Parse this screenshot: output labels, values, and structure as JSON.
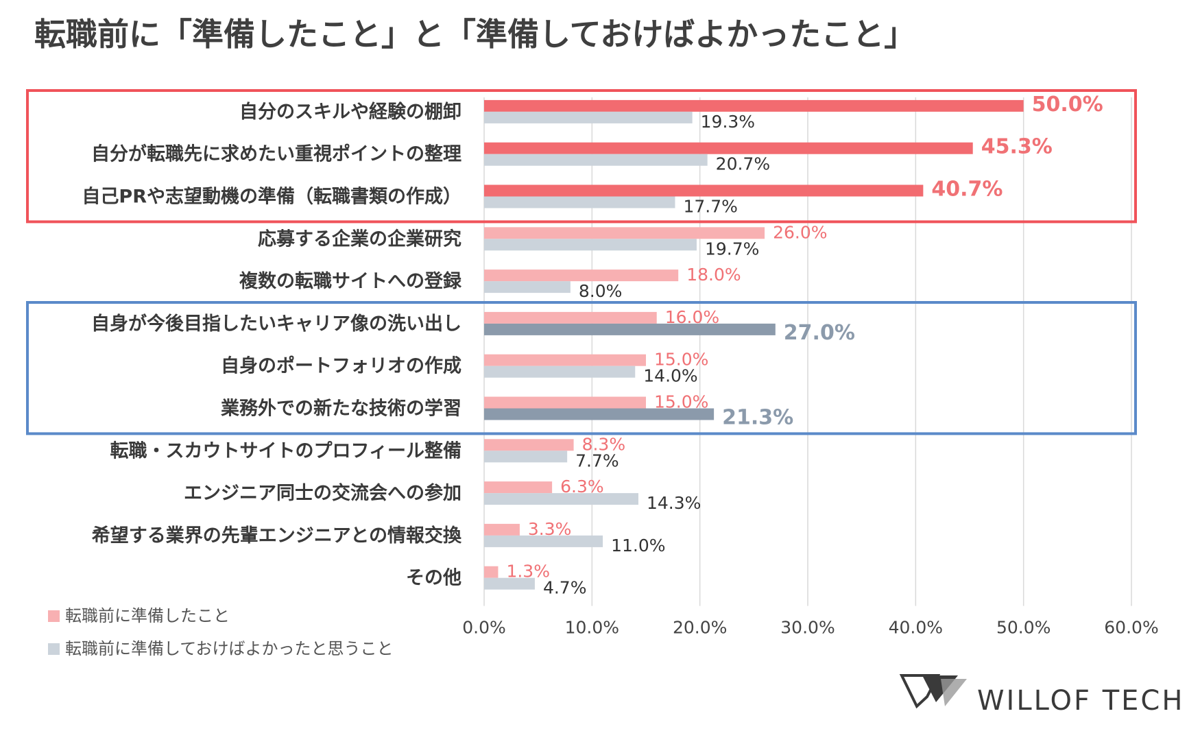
{
  "title": "転職前に「準備したこと」と「準備しておけばよかったこと」",
  "chart_data": {
    "type": "bar",
    "orientation": "horizontal",
    "title": "転職前に「準備したこと」と「準備しておけばよかったこと」",
    "xlim": [
      0,
      60
    ],
    "x_ticks": [
      "0.0%",
      "10.0%",
      "20.0%",
      "30.0%",
      "40.0%",
      "50.0%",
      "60.0%"
    ],
    "x_tick_values": [
      0,
      10,
      20,
      30,
      40,
      50,
      60
    ],
    "grid": "vertical",
    "categories": [
      "自分のスキルや経験の棚卸",
      "自分が転職先に求めたい重視ポイントの整理",
      "自己PRや志望動機の準備（転職書類の作成）",
      "応募する企業の企業研究",
      "複数の転職サイトへの登録",
      "自身が今後目指したいキャリア像の洗い出し",
      "自身のポートフォリオの作成",
      "業務外での新たな技術の学習",
      "転職・スカウトサイトのプロフィール整備",
      "エンジニア同士の交流会への参加",
      "希望する業界の先輩エンジニアとの情報交換",
      "その他"
    ],
    "series": [
      {
        "name": "転職前に準備したこと",
        "values": [
          50.0,
          45.3,
          40.7,
          26.0,
          18.0,
          16.0,
          15.0,
          15.0,
          8.3,
          6.3,
          3.3,
          1.3
        ],
        "labels": [
          "50.0%",
          "45.3%",
          "40.7%",
          "26.0%",
          "18.0%",
          "16.0%",
          "15.0%",
          "15.0%",
          "8.3%",
          "6.3%",
          "3.3%",
          "1.3%"
        ],
        "color": "#f8b0b2",
        "highlight_color": "#f26b70",
        "label_color": "#f07175"
      },
      {
        "name": "転職前に準備しておけばよかったと思うこと",
        "values": [
          19.3,
          20.7,
          17.7,
          19.7,
          8.0,
          27.0,
          14.0,
          21.3,
          7.7,
          14.3,
          11.0,
          4.7
        ],
        "labels": [
          "19.3%",
          "20.7%",
          "17.7%",
          "19.7%",
          "8.0%",
          "27.0%",
          "14.0%",
          "21.3%",
          "7.7%",
          "14.3%",
          "11.0%",
          "4.7%"
        ],
        "color": "#cbd3db",
        "highlight_color": "#8b9aab",
        "label_color": "#333333",
        "highlight_label_color": "#8b9aab"
      }
    ],
    "highlighted_series1": [
      0,
      1,
      2
    ],
    "highlighted_series2": [
      5,
      7
    ],
    "groups": [
      {
        "name": "red-group",
        "color": "#f0535a",
        "from": 0,
        "to": 2
      },
      {
        "name": "blue-group",
        "color": "#5b8ac9",
        "from": 5,
        "to": 7
      }
    ],
    "legend": [
      {
        "label": "転職前に準備したこと",
        "color": "#f8b0b2"
      },
      {
        "label": "転職前に準備しておけばよかったと思うこと",
        "color": "#cbd3db"
      }
    ],
    "legend_position": "bottom-left"
  },
  "logo": {
    "text": "WILLOF TECH"
  }
}
